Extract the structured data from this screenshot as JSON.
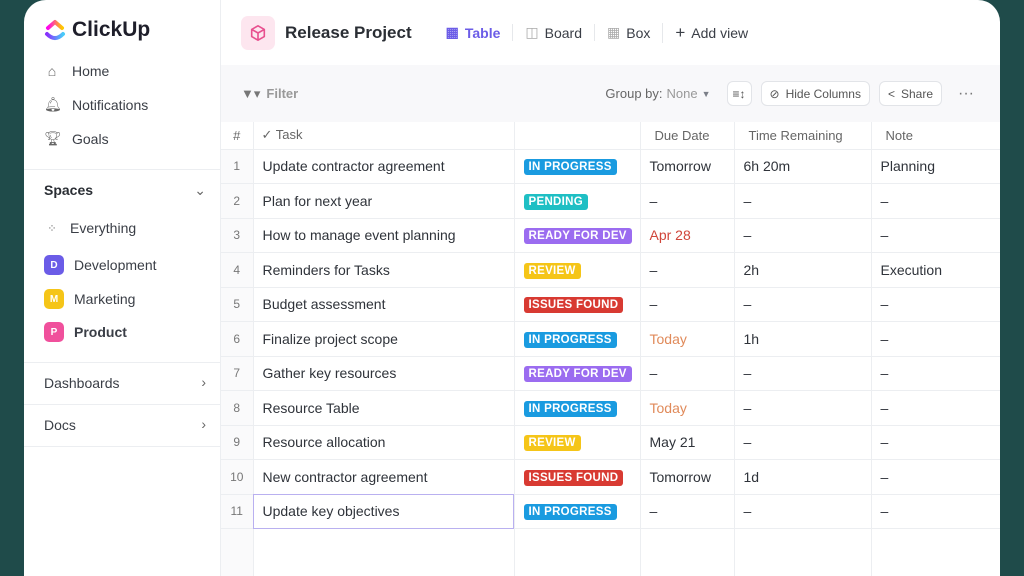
{
  "app": {
    "name": "ClickUp"
  },
  "sidebar": {
    "nav": [
      {
        "label": "Home",
        "icon": "home-icon"
      },
      {
        "label": "Notifications",
        "icon": "bell-icon"
      },
      {
        "label": "Goals",
        "icon": "trophy-icon"
      }
    ],
    "spaces_label": "Spaces",
    "everything_label": "Everything",
    "spaces": [
      {
        "letter": "D",
        "label": "Development",
        "color": "#6b5ce7"
      },
      {
        "letter": "M",
        "label": "Marketing",
        "color": "#f5c518"
      },
      {
        "letter": "P",
        "label": "Product",
        "color": "#f0509c",
        "active": true
      }
    ],
    "dashboards": "Dashboards",
    "docs": "Docs"
  },
  "header": {
    "title": "Release Project",
    "views": [
      {
        "label": "Table",
        "active": true
      },
      {
        "label": "Board"
      },
      {
        "label": "Box"
      }
    ],
    "add_view": "Add view"
  },
  "toolbar": {
    "filter": "Filter",
    "group_by_label": "Group by:",
    "group_by_value": "None",
    "hide_columns": "Hide Columns",
    "share": "Share"
  },
  "table": {
    "columns": {
      "num": "#",
      "task": "Task",
      "status": "",
      "due": "Due Date",
      "time": "Time Remaining",
      "note": "Note"
    },
    "status_colors": {
      "IN PROGRESS": "#1a9be0",
      "PENDING": "#1fbfc4",
      "READY FOR DEV": "#9b6cf0",
      "REVIEW": "#f5c518",
      "ISSUES FOUND": "#d83a32"
    },
    "rows": [
      {
        "n": "1",
        "task": "Update contractor agreement",
        "status": "IN PROGRESS",
        "due": "Tomorrow",
        "time": "6h 20m",
        "note": "Planning"
      },
      {
        "n": "2",
        "task": "Plan for next year",
        "status": "PENDING",
        "due": "–",
        "time": "–",
        "note": "–"
      },
      {
        "n": "3",
        "task": "How to manage event planning",
        "status": "READY FOR DEV",
        "due": "Apr 28",
        "due_color": "#d0453a",
        "time": "–",
        "note": "–"
      },
      {
        "n": "4",
        "task": "Reminders for Tasks",
        "status": "REVIEW",
        "due": "–",
        "time": "2h",
        "note": "Execution"
      },
      {
        "n": "5",
        "task": "Budget assessment",
        "status": "ISSUES FOUND",
        "due": "–",
        "time": "–",
        "note": "–"
      },
      {
        "n": "6",
        "task": "Finalize project scope",
        "status": "IN PROGRESS",
        "due": "Today",
        "due_color": "#e08a5a",
        "time": "1h",
        "note": "–"
      },
      {
        "n": "7",
        "task": "Gather key resources",
        "status": "READY FOR DEV",
        "due": "–",
        "time": "–",
        "note": "–"
      },
      {
        "n": "8",
        "task": "Resource Table",
        "status": "IN PROGRESS",
        "due": "Today",
        "due_color": "#e08a5a",
        "time": "–",
        "note": "–"
      },
      {
        "n": "9",
        "task": "Resource allocation",
        "status": "REVIEW",
        "due": "May 21",
        "time": "–",
        "note": "–"
      },
      {
        "n": "10",
        "task": "New contractor agreement",
        "status": "ISSUES FOUND",
        "due": "Tomorrow",
        "time": "1d",
        "note": "–"
      },
      {
        "n": "11",
        "task": "Update key objectives",
        "status": "IN PROGRESS",
        "due": "–",
        "time": "–",
        "note": "–",
        "selected": true
      }
    ]
  }
}
